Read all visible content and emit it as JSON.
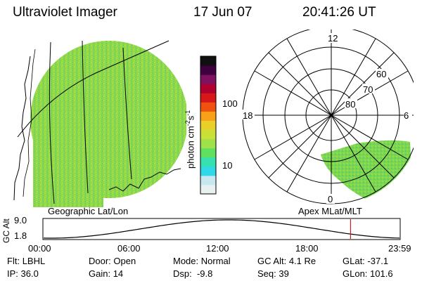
{
  "header": {
    "instrument": "Ultraviolet Imager",
    "date": "17 Jun 07",
    "time": "20:41:26 UT"
  },
  "left_panel": {
    "caption": "Geographic Lat/Lon"
  },
  "colorbar": {
    "ticks": [
      {
        "label": "100",
        "value": 100
      },
      {
        "label": "10",
        "value": 10
      }
    ],
    "unit_label": "photon cm",
    "unit_exp1": "-2",
    "unit_mid": "s",
    "unit_exp2": "-1",
    "colors": [
      "#e8f0f0",
      "#c8e8f0",
      "#30d8e8",
      "#38e0b0",
      "#60e060",
      "#a0e048",
      "#c8e038",
      "#e8d028",
      "#f8a018",
      "#f05010",
      "#d81818",
      "#b00030",
      "#801060",
      "#400040",
      "#101010"
    ]
  },
  "polar_plot": {
    "caption": "Apex MLat/MLT",
    "mlt_labels": {
      "top": "12",
      "right": "6",
      "bottom": "0",
      "left": "18"
    },
    "lat_labels": [
      "60",
      "70",
      "80"
    ]
  },
  "altitude_plot": {
    "ylabel": "GC Alt",
    "yticks": [
      "9.0",
      "1.8"
    ],
    "xticks": [
      "00:00",
      "06:00",
      "12:00",
      "18:00",
      "23:59"
    ],
    "current_time_marker": "20:41",
    "marker_color": "#cc2020"
  },
  "info": {
    "filter_label": "Flt:",
    "filter_value": "LBHL",
    "door_label": "Door:",
    "door_value": "Open",
    "mode_label": "Mode:",
    "mode_value": "Normal",
    "gcalt_label": "GC Alt:",
    "gcalt_value": "4.1 Re",
    "glat_label": "GLat:",
    "glat_value": "-37.1",
    "ip_label": "IP:",
    "ip_value": "36.0",
    "gain_label": "Gain:",
    "gain_value": "14",
    "dsp_label": "Dsp:",
    "dsp_value": "-9.8",
    "seq_label": "Seq:",
    "seq_value": "39",
    "glon_label": "GLon:",
    "glon_value": "101.6"
  },
  "colors": {
    "image_green": "#8ed84a",
    "aurora_green": "#7cd650"
  }
}
